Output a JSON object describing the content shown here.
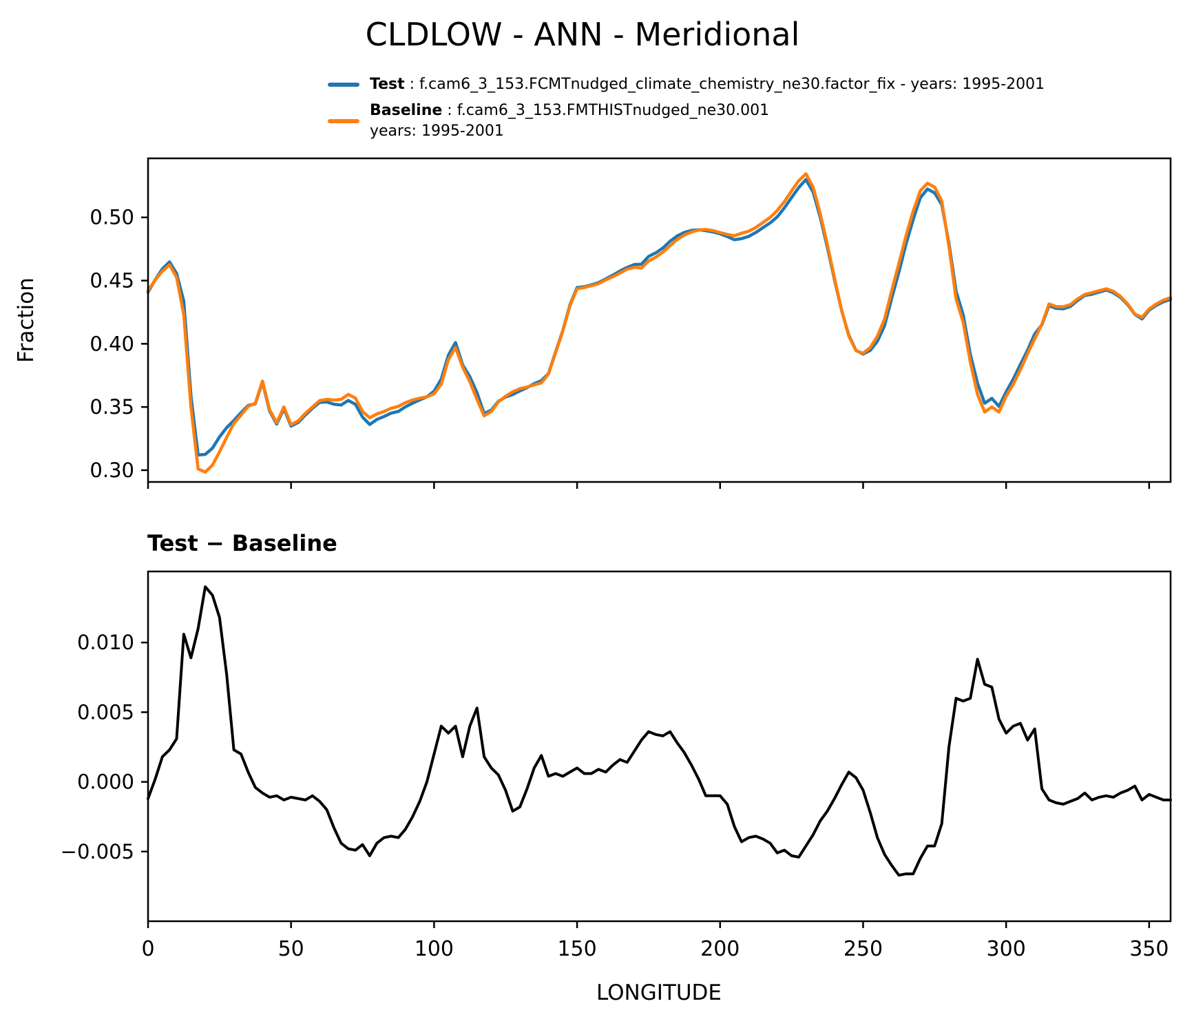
{
  "title": "CLDLOW - ANN - Meridional",
  "legend": {
    "test": {
      "label": "Test",
      "sep": " : ",
      "text": "f.cam6_3_153.FCMTnudged_climate_chemistry_ne30.factor_fix - years: 1995-2001",
      "color": "#1f77b4"
    },
    "baseline": {
      "label": "Baseline",
      "sep": " : ",
      "text": "f.cam6_3_153.FMTHISTnudged_ne30.001",
      "text2": "years: 1995-2001",
      "color": "#ff7f0e"
    }
  },
  "top_panel": {
    "ylabel": "Fraction",
    "ytick_labels": [
      "0.50",
      "0.45",
      "0.40",
      "0.35",
      "0.30"
    ]
  },
  "bottom_panel": {
    "title": "Test − Baseline",
    "xlabel": "LONGITUDE",
    "ytick_labels": [
      "0.010",
      "0.005",
      "0.000",
      "−0.005"
    ],
    "xtick_labels": [
      "0",
      "50",
      "100",
      "150",
      "200",
      "250",
      "300",
      "350"
    ]
  },
  "chart_data": [
    {
      "type": "line",
      "title": "CLDLOW - ANN - Meridional",
      "xlabel": "",
      "ylabel": "Fraction",
      "xlim": [
        0,
        357.5
      ],
      "ylim": [
        0.2907,
        0.5467
      ],
      "xticks": [
        0,
        50,
        100,
        150,
        200,
        250,
        300,
        350
      ],
      "yticks": [
        0.5,
        0.45,
        0.4,
        0.35,
        0.3
      ],
      "grid": false,
      "legend_position": "above-left",
      "x": [
        0,
        2.5,
        5,
        7.5,
        10,
        12.5,
        15,
        17.5,
        20,
        22.5,
        25,
        27.5,
        30,
        32.5,
        35,
        37.5,
        40,
        42.5,
        45,
        47.5,
        50,
        52.5,
        55,
        57.5,
        60,
        62.5,
        65,
        67.5,
        70,
        72.5,
        75,
        77.5,
        80,
        82.5,
        85,
        87.5,
        90,
        92.5,
        95,
        97.5,
        100,
        102.5,
        105,
        107.5,
        110,
        112.5,
        115,
        117.5,
        120,
        122.5,
        125,
        127.5,
        130,
        132.5,
        135,
        137.5,
        140,
        142.5,
        145,
        147.5,
        150,
        152.5,
        155,
        157.5,
        160,
        162.5,
        165,
        167.5,
        170,
        172.5,
        175,
        177.5,
        180,
        182.5,
        185,
        187.5,
        190,
        192.5,
        195,
        197.5,
        200,
        202.5,
        205,
        207.5,
        210,
        212.5,
        215,
        217.5,
        220,
        222.5,
        225,
        227.5,
        230,
        232.5,
        235,
        237.5,
        240,
        242.5,
        245,
        247.5,
        250,
        252.5,
        255,
        257.5,
        260,
        262.5,
        265,
        267.5,
        270,
        272.5,
        275,
        277.5,
        280,
        282.5,
        285,
        287.5,
        290,
        292.5,
        295,
        297.5,
        300,
        302.5,
        305,
        307.5,
        310,
        312.5,
        315,
        317.5,
        320,
        322.5,
        325,
        327.5,
        330,
        332.5,
        335,
        337.5,
        340,
        342.5,
        345,
        347.5,
        350,
        352.5,
        355,
        357.5
      ],
      "series": [
        {
          "name": "Test",
          "color": "#1f77b4",
          "values": [
            0.4408,
            0.4507,
            0.4593,
            0.4648,
            0.4556,
            0.4336,
            0.3589,
            0.312,
            0.3125,
            0.3174,
            0.3263,
            0.3337,
            0.3393,
            0.3455,
            0.3512,
            0.3526,
            0.3697,
            0.3469,
            0.3365,
            0.3487,
            0.3349,
            0.3378,
            0.3437,
            0.349,
            0.3536,
            0.354,
            0.3522,
            0.3516,
            0.3552,
            0.3521,
            0.342,
            0.3362,
            0.3401,
            0.3425,
            0.3451,
            0.3465,
            0.3501,
            0.353,
            0.3556,
            0.358,
            0.3625,
            0.372,
            0.391,
            0.401,
            0.3833,
            0.374,
            0.3613,
            0.3448,
            0.3475,
            0.3545,
            0.3579,
            0.3599,
            0.3627,
            0.3653,
            0.3685,
            0.3709,
            0.3764,
            0.3936,
            0.4104,
            0.4307,
            0.4445,
            0.4451,
            0.4466,
            0.4484,
            0.4512,
            0.4542,
            0.4576,
            0.4604,
            0.4627,
            0.463,
            0.4691,
            0.4719,
            0.4758,
            0.4811,
            0.4853,
            0.4881,
            0.4897,
            0.4902,
            0.4895,
            0.4885,
            0.487,
            0.4849,
            0.4823,
            0.4832,
            0.485,
            0.4881,
            0.4919,
            0.4956,
            0.5004,
            0.5076,
            0.5157,
            0.5236,
            0.5299,
            0.5202,
            0.5002,
            0.4764,
            0.4508,
            0.4263,
            0.4067,
            0.3948,
            0.3919,
            0.3948,
            0.402,
            0.4143,
            0.436,
            0.4568,
            0.4789,
            0.4984,
            0.5155,
            0.5224,
            0.5194,
            0.51,
            0.4795,
            0.4415,
            0.4228,
            0.3915,
            0.3688,
            0.353,
            0.3568,
            0.3505,
            0.362,
            0.372,
            0.3837,
            0.395,
            0.4078,
            0.415,
            0.4302,
            0.428,
            0.4277,
            0.4296,
            0.4343,
            0.4382,
            0.4392,
            0.4409,
            0.4425,
            0.4404,
            0.4367,
            0.4309,
            0.4232,
            0.4197,
            0.4266,
            0.4304,
            0.4332,
            0.4352
          ]
        },
        {
          "name": "Baseline",
          "color": "#ff7f0e",
          "values": [
            0.442,
            0.4505,
            0.4575,
            0.4625,
            0.4525,
            0.423,
            0.35,
            0.301,
            0.2985,
            0.304,
            0.3145,
            0.326,
            0.337,
            0.3435,
            0.3505,
            0.353,
            0.3705,
            0.348,
            0.3375,
            0.35,
            0.336,
            0.339,
            0.345,
            0.35,
            0.355,
            0.356,
            0.3555,
            0.356,
            0.36,
            0.357,
            0.3465,
            0.3415,
            0.3445,
            0.3465,
            0.349,
            0.3505,
            0.3535,
            0.3555,
            0.357,
            0.358,
            0.3605,
            0.368,
            0.3875,
            0.397,
            0.3815,
            0.37,
            0.356,
            0.343,
            0.3465,
            0.354,
            0.3585,
            0.362,
            0.3645,
            0.3658,
            0.3675,
            0.369,
            0.376,
            0.393,
            0.41,
            0.43,
            0.4435,
            0.4445,
            0.446,
            0.4475,
            0.4505,
            0.453,
            0.456,
            0.459,
            0.4605,
            0.46,
            0.4655,
            0.4685,
            0.4725,
            0.4775,
            0.4825,
            0.486,
            0.4885,
            0.49,
            0.4905,
            0.4895,
            0.488,
            0.4865,
            0.4855,
            0.4875,
            0.489,
            0.492,
            0.496,
            0.5,
            0.5055,
            0.5125,
            0.521,
            0.529,
            0.5345,
            0.524,
            0.503,
            0.4785,
            0.452,
            0.4265,
            0.406,
            0.3945,
            0.3925,
            0.397,
            0.406,
            0.4195,
            0.442,
            0.4635,
            0.4855,
            0.505,
            0.521,
            0.527,
            0.524,
            0.513,
            0.477,
            0.4355,
            0.417,
            0.3855,
            0.36,
            0.346,
            0.35,
            0.346,
            0.3585,
            0.368,
            0.3795,
            0.392,
            0.404,
            0.4155,
            0.4315,
            0.4295,
            0.4293,
            0.431,
            0.4355,
            0.439,
            0.4405,
            0.442,
            0.4435,
            0.4415,
            0.4375,
            0.4315,
            0.4235,
            0.421,
            0.4275,
            0.4315,
            0.4345,
            0.4365
          ]
        }
      ]
    },
    {
      "type": "line",
      "title": "Test − Baseline",
      "xlabel": "LONGITUDE",
      "ylabel": "",
      "xlim": [
        0,
        357.5
      ],
      "ylim": [
        -0.01,
        0.0151
      ],
      "xticks": [
        0,
        50,
        100,
        150,
        200,
        250,
        300,
        350
      ],
      "yticks": [
        0.01,
        0.005,
        0.0,
        -0.005
      ],
      "grid": false,
      "x": [
        0,
        2.5,
        5,
        7.5,
        10,
        12.5,
        15,
        17.5,
        20,
        22.5,
        25,
        27.5,
        30,
        32.5,
        35,
        37.5,
        40,
        42.5,
        45,
        47.5,
        50,
        52.5,
        55,
        57.5,
        60,
        62.5,
        65,
        67.5,
        70,
        72.5,
        75,
        77.5,
        80,
        82.5,
        85,
        87.5,
        90,
        92.5,
        95,
        97.5,
        100,
        102.5,
        105,
        107.5,
        110,
        112.5,
        115,
        117.5,
        120,
        122.5,
        125,
        127.5,
        130,
        132.5,
        135,
        137.5,
        140,
        142.5,
        145,
        147.5,
        150,
        152.5,
        155,
        157.5,
        160,
        162.5,
        165,
        167.5,
        170,
        172.5,
        175,
        177.5,
        180,
        182.5,
        185,
        187.5,
        190,
        192.5,
        195,
        197.5,
        200,
        202.5,
        205,
        207.5,
        210,
        212.5,
        215,
        217.5,
        220,
        222.5,
        225,
        227.5,
        230,
        232.5,
        235,
        237.5,
        240,
        242.5,
        245,
        247.5,
        250,
        252.5,
        255,
        257.5,
        260,
        262.5,
        265,
        267.5,
        270,
        272.5,
        275,
        277.5,
        280,
        282.5,
        285,
        287.5,
        290,
        292.5,
        295,
        297.5,
        300,
        302.5,
        305,
        307.5,
        310,
        312.5,
        315,
        317.5,
        320,
        322.5,
        325,
        327.5,
        330,
        332.5,
        335,
        337.5,
        340,
        342.5,
        345,
        347.5,
        350,
        352.5,
        355,
        357.5
      ],
      "series": [
        {
          "name": "Test - Baseline",
          "color": "#000000",
          "values": [
            -0.0012,
            0.0002,
            0.0018,
            0.0023,
            0.0031,
            0.0106,
            0.0089,
            0.011,
            0.014,
            0.0134,
            0.0118,
            0.0077,
            0.0023,
            0.002,
            0.0007,
            -0.0004,
            -0.0008,
            -0.0011,
            -0.001,
            -0.0013,
            -0.0011,
            -0.0012,
            -0.0013,
            -0.001,
            -0.0014,
            -0.002,
            -0.0033,
            -0.0044,
            -0.0048,
            -0.0049,
            -0.0045,
            -0.0053,
            -0.0044,
            -0.004,
            -0.0039,
            -0.004,
            -0.0034,
            -0.0025,
            -0.0014,
            0.0,
            0.002,
            0.004,
            0.0035,
            0.004,
            0.0018,
            0.004,
            0.0053,
            0.0018,
            0.001,
            0.0005,
            -0.0006,
            -0.0021,
            -0.0018,
            -0.0005,
            0.001,
            0.0019,
            0.0004,
            0.0006,
            0.0004,
            0.0007,
            0.001,
            0.0006,
            0.0006,
            0.0009,
            0.0007,
            0.0012,
            0.0016,
            0.0014,
            0.0022,
            0.003,
            0.0036,
            0.0034,
            0.0033,
            0.0036,
            0.0028,
            0.0021,
            0.0012,
            0.0002,
            -0.001,
            -0.001,
            -0.001,
            -0.0016,
            -0.0032,
            -0.0043,
            -0.004,
            -0.0039,
            -0.0041,
            -0.0044,
            -0.0051,
            -0.0049,
            -0.0053,
            -0.0054,
            -0.0046,
            -0.0038,
            -0.0028,
            -0.0021,
            -0.0012,
            -0.0002,
            0.0007,
            0.0003,
            -0.0006,
            -0.0022,
            -0.004,
            -0.0052,
            -0.006,
            -0.0067,
            -0.0066,
            -0.0066,
            -0.0055,
            -0.0046,
            -0.0046,
            -0.003,
            0.0025,
            0.006,
            0.0058,
            0.006,
            0.0088,
            0.007,
            0.0068,
            0.0045,
            0.0035,
            0.004,
            0.0042,
            0.003,
            0.0038,
            -0.0005,
            -0.0013,
            -0.0015,
            -0.0016,
            -0.0014,
            -0.0012,
            -0.0008,
            -0.0013,
            -0.0011,
            -0.001,
            -0.0011,
            -0.0008,
            -0.0006,
            -0.0003,
            -0.0013,
            -0.0009,
            -0.0011,
            -0.0013,
            -0.0013
          ]
        }
      ]
    }
  ]
}
